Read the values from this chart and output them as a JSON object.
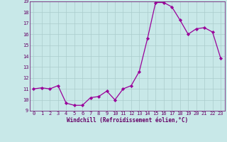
{
  "x": [
    0,
    1,
    2,
    3,
    4,
    5,
    6,
    7,
    8,
    9,
    10,
    11,
    12,
    13,
    14,
    15,
    16,
    17,
    18,
    19,
    20,
    21,
    22,
    23
  ],
  "y": [
    11.0,
    11.1,
    11.0,
    11.3,
    9.7,
    9.5,
    9.5,
    10.2,
    10.3,
    10.8,
    10.0,
    11.0,
    11.3,
    12.6,
    15.6,
    18.9,
    18.9,
    18.5,
    17.3,
    16.0,
    16.5,
    16.6,
    16.2,
    13.8
  ],
  "line_color": "#990099",
  "marker_color": "#990099",
  "bg_color": "#c8e8e8",
  "grid_color": "#aacccc",
  "xlabel": "Windchill (Refroidissement éolien,°C)",
  "ylim": [
    9,
    19
  ],
  "xlim": [
    -0.5,
    23.5
  ],
  "yticks": [
    9,
    10,
    11,
    12,
    13,
    14,
    15,
    16,
    17,
    18,
    19
  ],
  "ytick_labels": [
    "9",
    "10",
    "11",
    "12",
    "13",
    "14",
    "15",
    "16",
    "17",
    "18",
    "19"
  ],
  "xticks": [
    0,
    1,
    2,
    3,
    4,
    5,
    6,
    7,
    8,
    9,
    10,
    11,
    12,
    13,
    14,
    15,
    16,
    17,
    18,
    19,
    20,
    21,
    22,
    23
  ],
  "tick_color": "#660066",
  "label_color": "#660066",
  "tick_fontsize": 5.0,
  "xlabel_fontsize": 5.5,
  "line_width": 0.9,
  "marker_size": 2.2
}
